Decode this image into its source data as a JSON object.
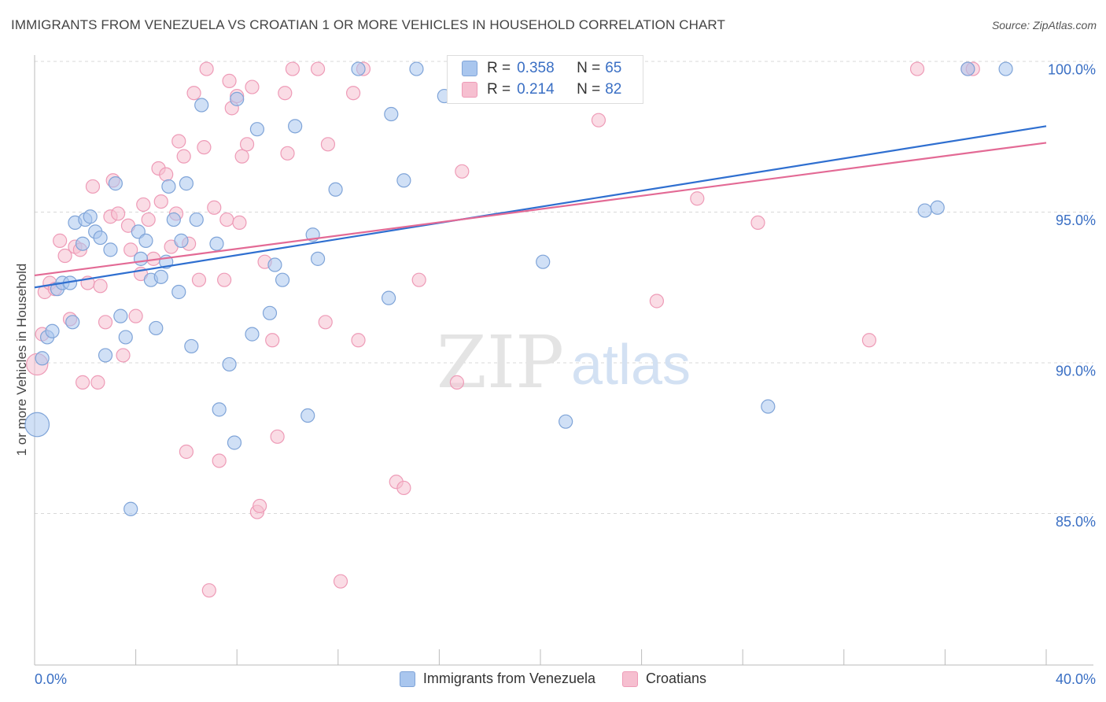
{
  "header": {
    "title": "IMMIGRANTS FROM VENEZUELA VS CROATIAN 1 OR MORE VEHICLES IN HOUSEHOLD CORRELATION CHART",
    "source": "Source: ZipAtlas.com"
  },
  "legend": {
    "r_label": "R =",
    "n_label": "N =",
    "blue_r": "0.358",
    "blue_n": "65",
    "pink_r": "0.214",
    "pink_n": "82"
  },
  "colors": {
    "blue_fill": "#a9c6ee",
    "blue_stroke": "#7fa4d8",
    "blue_line": "#2f6fd0",
    "pink_fill": "#f6bfd0",
    "pink_stroke": "#ee9bb7",
    "pink_line": "#e36a95",
    "tick_label": "#3a6fc4",
    "grid": "#d8d8d8"
  },
  "watermark": {
    "zip": "ZIP",
    "atlas": "atlas"
  },
  "chart_data": {
    "type": "scatter",
    "xlabel": "",
    "ylabel": "1 or more Vehicles in Household",
    "xlim": [
      0,
      40
    ],
    "ylim": [
      80,
      100.5
    ],
    "x_tick_labels": [
      "0.0%",
      "40.0%"
    ],
    "y_ticks": [
      85,
      90,
      95,
      100
    ],
    "y_tick_labels": [
      "85.0%",
      "90.0%",
      "95.0%",
      "100.0%"
    ],
    "grid": true,
    "series": [
      {
        "name": "Immigrants from Venezuela",
        "color": "blue",
        "trend": [
          [
            0,
            92.75
          ],
          [
            40,
            98.1
          ]
        ],
        "points": [
          [
            0.1,
            88.2,
            1.8
          ],
          [
            0.3,
            90.4,
            1
          ],
          [
            0.5,
            91.1,
            1
          ],
          [
            0.7,
            91.3,
            1
          ],
          [
            0.9,
            92.7,
            1
          ],
          [
            1.1,
            92.9,
            1
          ],
          [
            1.4,
            92.9,
            1
          ],
          [
            1.5,
            91.6,
            1
          ],
          [
            1.6,
            94.9,
            1
          ],
          [
            1.9,
            94.2,
            1
          ],
          [
            2.0,
            95.0,
            1
          ],
          [
            2.2,
            95.1,
            1
          ],
          [
            2.4,
            94.6,
            1
          ],
          [
            2.6,
            94.4,
            1
          ],
          [
            2.8,
            90.5,
            1
          ],
          [
            3.0,
            94.0,
            1
          ],
          [
            3.2,
            96.2,
            1
          ],
          [
            3.4,
            91.8,
            1
          ],
          [
            3.6,
            91.1,
            1
          ],
          [
            3.8,
            85.4,
            1
          ],
          [
            4.1,
            94.6,
            1
          ],
          [
            4.2,
            93.7,
            1
          ],
          [
            4.4,
            94.3,
            1
          ],
          [
            4.6,
            93.0,
            1
          ],
          [
            4.8,
            91.4,
            1
          ],
          [
            5.0,
            93.1,
            1
          ],
          [
            5.2,
            93.6,
            1
          ],
          [
            5.3,
            96.1,
            1
          ],
          [
            5.5,
            95.0,
            1
          ],
          [
            5.7,
            92.6,
            1
          ],
          [
            5.8,
            94.3,
            1
          ],
          [
            6.0,
            96.2,
            1
          ],
          [
            6.2,
            90.8,
            1
          ],
          [
            6.4,
            95.0,
            1
          ],
          [
            6.6,
            98.8,
            1
          ],
          [
            7.2,
            94.2,
            1
          ],
          [
            7.3,
            88.7,
            1
          ],
          [
            7.7,
            90.2,
            1
          ],
          [
            7.9,
            87.6,
            1
          ],
          [
            8.0,
            99.0,
            1
          ],
          [
            8.6,
            91.2,
            1
          ],
          [
            8.8,
            98.0,
            1
          ],
          [
            9.3,
            91.9,
            1
          ],
          [
            9.5,
            93.5,
            1
          ],
          [
            9.8,
            93.0,
            1
          ],
          [
            10.3,
            98.1,
            1
          ],
          [
            10.8,
            88.5,
            1
          ],
          [
            11.0,
            94.5,
            1
          ],
          [
            11.2,
            93.7,
            1
          ],
          [
            11.9,
            96.0,
            1
          ],
          [
            12.8,
            100.0,
            1
          ],
          [
            14.0,
            92.4,
            1
          ],
          [
            14.1,
            98.5,
            1
          ],
          [
            14.6,
            96.3,
            1
          ],
          [
            15.1,
            100.0,
            1
          ],
          [
            16.2,
            99.1,
            1
          ],
          [
            17.0,
            100.0,
            1
          ],
          [
            20.1,
            93.6,
            1
          ],
          [
            21.0,
            88.3,
            1
          ],
          [
            23.3,
            100.0,
            1
          ],
          [
            29.0,
            88.8,
            1
          ],
          [
            35.2,
            95.3,
            1
          ],
          [
            35.7,
            95.4,
            1
          ],
          [
            36.9,
            100.0,
            1
          ],
          [
            38.4,
            100.0,
            1
          ]
        ]
      },
      {
        "name": "Croatians",
        "color": "pink",
        "trend": [
          [
            0,
            93.15
          ],
          [
            40,
            97.55
          ]
        ],
        "points": [
          [
            0.1,
            90.2,
            1.6
          ],
          [
            0.3,
            91.2,
            1
          ],
          [
            0.4,
            92.6,
            1
          ],
          [
            0.6,
            92.9,
            1
          ],
          [
            0.8,
            92.7,
            1
          ],
          [
            1.0,
            94.3,
            1
          ],
          [
            1.2,
            93.8,
            1
          ],
          [
            1.4,
            91.7,
            1
          ],
          [
            1.6,
            94.1,
            1
          ],
          [
            1.8,
            94.0,
            1
          ],
          [
            1.9,
            89.6,
            1
          ],
          [
            2.1,
            92.9,
            1
          ],
          [
            2.3,
            96.1,
            1
          ],
          [
            2.5,
            89.6,
            1
          ],
          [
            2.6,
            92.8,
            1
          ],
          [
            2.8,
            91.6,
            1
          ],
          [
            3.0,
            95.1,
            1
          ],
          [
            3.1,
            96.3,
            1
          ],
          [
            3.3,
            95.2,
            1
          ],
          [
            3.5,
            90.5,
            1
          ],
          [
            3.7,
            94.8,
            1
          ],
          [
            3.8,
            94.0,
            1
          ],
          [
            4.0,
            91.8,
            1
          ],
          [
            4.2,
            93.2,
            1
          ],
          [
            4.3,
            95.5,
            1
          ],
          [
            4.5,
            95.0,
            1
          ],
          [
            4.7,
            93.7,
            1
          ],
          [
            4.9,
            96.7,
            1
          ],
          [
            5.0,
            95.6,
            1
          ],
          [
            5.2,
            96.5,
            1
          ],
          [
            5.4,
            94.1,
            1
          ],
          [
            5.6,
            95.2,
            1
          ],
          [
            5.7,
            97.6,
            1
          ],
          [
            5.9,
            97.1,
            1
          ],
          [
            6.0,
            87.3,
            1
          ],
          [
            6.1,
            94.2,
            1
          ],
          [
            6.3,
            99.2,
            1
          ],
          [
            6.5,
            93.0,
            1
          ],
          [
            6.7,
            97.4,
            1
          ],
          [
            6.8,
            100.0,
            1
          ],
          [
            6.9,
            82.7,
            1
          ],
          [
            7.1,
            95.4,
            1
          ],
          [
            7.3,
            87.0,
            1
          ],
          [
            7.5,
            93.0,
            1
          ],
          [
            7.6,
            95.0,
            1
          ],
          [
            7.7,
            99.6,
            1
          ],
          [
            7.8,
            98.7,
            1
          ],
          [
            8.0,
            99.1,
            1
          ],
          [
            8.1,
            94.9,
            1
          ],
          [
            8.2,
            97.1,
            1
          ],
          [
            8.4,
            97.5,
            1
          ],
          [
            8.6,
            99.4,
            1
          ],
          [
            8.8,
            85.3,
            1
          ],
          [
            8.9,
            85.5,
            1
          ],
          [
            9.1,
            93.6,
            1
          ],
          [
            9.4,
            91.0,
            1
          ],
          [
            9.6,
            87.8,
            1
          ],
          [
            9.9,
            99.2,
            1
          ],
          [
            10.0,
            97.2,
            1
          ],
          [
            10.2,
            100.0,
            1
          ],
          [
            11.2,
            100.0,
            1
          ],
          [
            11.5,
            91.6,
            1
          ],
          [
            11.6,
            97.5,
            1
          ],
          [
            12.1,
            83.0,
            1
          ],
          [
            12.6,
            99.2,
            1
          ],
          [
            12.8,
            91.0,
            1
          ],
          [
            13.0,
            100.0,
            1
          ],
          [
            14.3,
            86.3,
            1
          ],
          [
            14.6,
            86.1,
            1
          ],
          [
            15.2,
            93.0,
            1
          ],
          [
            16.7,
            89.6,
            1
          ],
          [
            16.9,
            96.6,
            1
          ],
          [
            19.8,
            100.0,
            1
          ],
          [
            21.8,
            100.0,
            1
          ],
          [
            22.3,
            98.3,
            1
          ],
          [
            24.6,
            92.3,
            1
          ],
          [
            26.2,
            95.7,
            1
          ],
          [
            28.6,
            94.9,
            1
          ],
          [
            33.0,
            91.0,
            1
          ],
          [
            34.9,
            100.0,
            1
          ],
          [
            36.9,
            100.0,
            1
          ],
          [
            37.1,
            100.0,
            1
          ]
        ]
      }
    ]
  }
}
